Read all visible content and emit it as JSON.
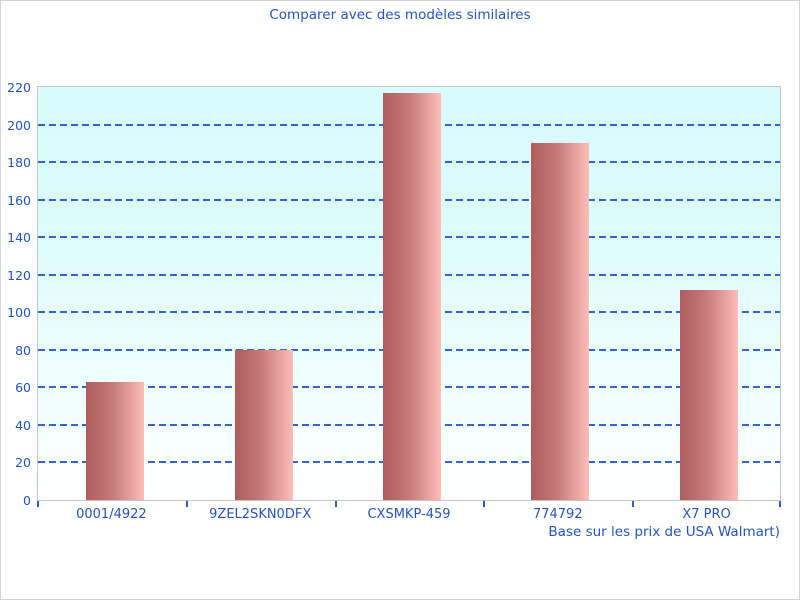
{
  "title": "Comparer avec des modèles similaires",
  "footnote": "Base sur les prix de USA Walmart)",
  "colors": {
    "text_blue": "#2254c8",
    "gridline_blue": "#3366cc",
    "plot_bg_top": "#d8fbfb",
    "plot_bg_bottom": "#ffffff",
    "bar_gradient_left": "#b05c5e",
    "bar_gradient_right": "#fdbdb8",
    "border_gray": "#c6c6c6"
  },
  "chart_data": {
    "type": "bar",
    "title": "Comparer avec des modèles similaires",
    "categories": [
      "0001/4922",
      "9ZEL2SKN0DFX",
      "CXSMKP-459",
      "774792",
      "X7 PRO"
    ],
    "values": [
      63,
      80,
      217,
      190,
      112
    ],
    "xlabel": "",
    "ylabel": "",
    "ylim": [
      0,
      220
    ],
    "ytick_step": 20,
    "ytick_labels": [
      "0",
      "20",
      "40",
      "60",
      "80",
      "100",
      "120",
      "140",
      "160",
      "180",
      "200",
      "220"
    ],
    "grid": "horizontal-dashed",
    "legend": "none",
    "annotation": "Base sur les prix de USA Walmart)"
  }
}
